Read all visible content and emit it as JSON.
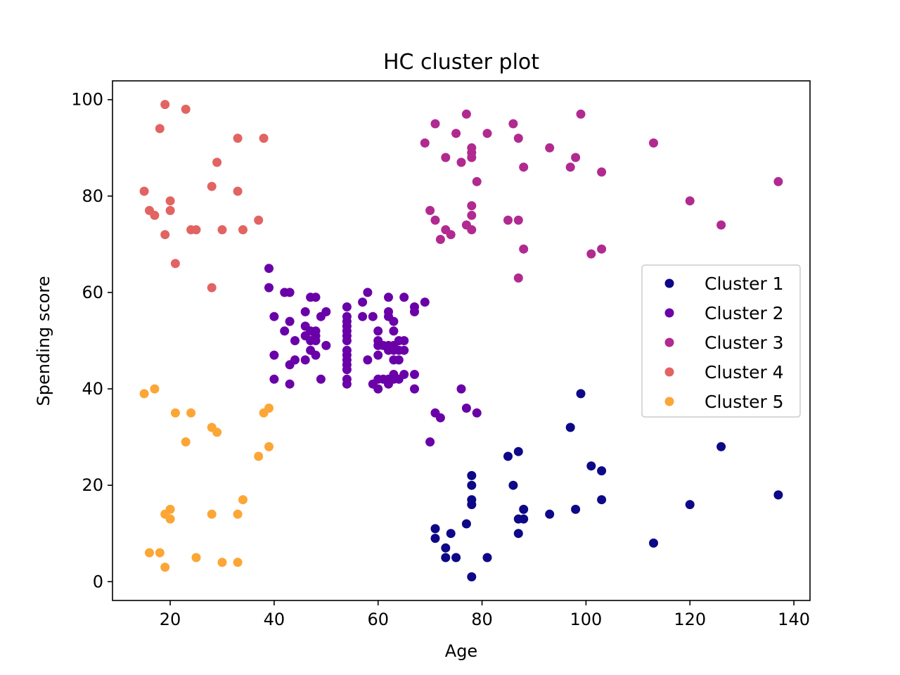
{
  "chart_data": {
    "type": "scatter",
    "title": "HC cluster plot",
    "xlabel": "Age",
    "ylabel": "Spending score",
    "xlim": [
      8.9,
      143.1
    ],
    "ylim": [
      -3.9,
      103.9
    ],
    "xticks": [
      20,
      40,
      60,
      80,
      100,
      120,
      140
    ],
    "yticks": [
      0,
      20,
      40,
      60,
      80,
      100
    ],
    "grid": false,
    "legend_position": "center-right",
    "series": [
      {
        "name": "Cluster 1",
        "color": "#0d0887",
        "points": [
          [
            78,
            1
          ],
          [
            73,
            5
          ],
          [
            75,
            5
          ],
          [
            81,
            5
          ],
          [
            73,
            7
          ],
          [
            113,
            8
          ],
          [
            71,
            9
          ],
          [
            74,
            10
          ],
          [
            87,
            10
          ],
          [
            71,
            11
          ],
          [
            77,
            12
          ],
          [
            87,
            13
          ],
          [
            88,
            13
          ],
          [
            93,
            14
          ],
          [
            78,
            16
          ],
          [
            120,
            16
          ],
          [
            88,
            15
          ],
          [
            98,
            15
          ],
          [
            78,
            17
          ],
          [
            103,
            17
          ],
          [
            137,
            18
          ],
          [
            78,
            20
          ],
          [
            86,
            20
          ],
          [
            78,
            22
          ],
          [
            103,
            23
          ],
          [
            101,
            24
          ],
          [
            85,
            26
          ],
          [
            87,
            27
          ],
          [
            126,
            28
          ],
          [
            97,
            32
          ],
          [
            99,
            39
          ]
        ]
      },
      {
        "name": "Cluster 2",
        "color": "#6a00a8",
        "points": [
          [
            39,
            65
          ],
          [
            39,
            61
          ],
          [
            42,
            60
          ],
          [
            43,
            60
          ],
          [
            47,
            59
          ],
          [
            48,
            59
          ],
          [
            58,
            60
          ],
          [
            62,
            59
          ],
          [
            65,
            59
          ],
          [
            57,
            58
          ],
          [
            69,
            58
          ],
          [
            67,
            57
          ],
          [
            54,
            57
          ],
          [
            40,
            55
          ],
          [
            46,
            56
          ],
          [
            50,
            56
          ],
          [
            49,
            55
          ],
          [
            62,
            56
          ],
          [
            67,
            56
          ],
          [
            57,
            55
          ],
          [
            59,
            55
          ],
          [
            62,
            55
          ],
          [
            43,
            54
          ],
          [
            63,
            54
          ],
          [
            54,
            55
          ],
          [
            54,
            54
          ],
          [
            54,
            53
          ],
          [
            46,
            53
          ],
          [
            48,
            52
          ],
          [
            44,
            50
          ],
          [
            47,
            52
          ],
          [
            42,
            52
          ],
          [
            46,
            51
          ],
          [
            48,
            51
          ],
          [
            54,
            52
          ],
          [
            54,
            51
          ],
          [
            60,
            52
          ],
          [
            63,
            52
          ],
          [
            64,
            50
          ],
          [
            47,
            50
          ],
          [
            48,
            50
          ],
          [
            50,
            49
          ],
          [
            65,
            50
          ],
          [
            54,
            50
          ],
          [
            60,
            50
          ],
          [
            62,
            49
          ],
          [
            63,
            49
          ],
          [
            60,
            49
          ],
          [
            61,
            49
          ],
          [
            47,
            48
          ],
          [
            48,
            47
          ],
          [
            40,
            47
          ],
          [
            54,
            48
          ],
          [
            54,
            47
          ],
          [
            58,
            46
          ],
          [
            60,
            47
          ],
          [
            65,
            48
          ],
          [
            62,
            48
          ],
          [
            63,
            48
          ],
          [
            64,
            48
          ],
          [
            44,
            46
          ],
          [
            46,
            46
          ],
          [
            43,
            45
          ],
          [
            54,
            46
          ],
          [
            54,
            45
          ],
          [
            63,
            46
          ],
          [
            64,
            46
          ],
          [
            54,
            44
          ],
          [
            49,
            42
          ],
          [
            40,
            42
          ],
          [
            43,
            41
          ],
          [
            54,
            42
          ],
          [
            54,
            41
          ],
          [
            59,
            41
          ],
          [
            60,
            42
          ],
          [
            61,
            42
          ],
          [
            62,
            42
          ],
          [
            63,
            43
          ],
          [
            64,
            42
          ],
          [
            65,
            43
          ],
          [
            67,
            43
          ],
          [
            62,
            41
          ],
          [
            63,
            42
          ],
          [
            60,
            40
          ],
          [
            67,
            40
          ],
          [
            76,
            40
          ],
          [
            77,
            36
          ],
          [
            79,
            35
          ],
          [
            71,
            35
          ],
          [
            72,
            34
          ],
          [
            70,
            29
          ]
        ]
      },
      {
        "name": "Cluster 3",
        "color": "#b12a90",
        "points": [
          [
            77,
            97
          ],
          [
            99,
            97
          ],
          [
            71,
            95
          ],
          [
            86,
            95
          ],
          [
            75,
            93
          ],
          [
            81,
            93
          ],
          [
            87,
            92
          ],
          [
            113,
            91
          ],
          [
            69,
            91
          ],
          [
            78,
            90
          ],
          [
            93,
            90
          ],
          [
            78,
            89
          ],
          [
            73,
            88
          ],
          [
            78,
            88
          ],
          [
            98,
            88
          ],
          [
            76,
            87
          ],
          [
            88,
            86
          ],
          [
            97,
            86
          ],
          [
            103,
            85
          ],
          [
            79,
            83
          ],
          [
            137,
            83
          ],
          [
            120,
            79
          ],
          [
            78,
            78
          ],
          [
            70,
            77
          ],
          [
            78,
            76
          ],
          [
            71,
            75
          ],
          [
            85,
            75
          ],
          [
            87,
            75
          ],
          [
            77,
            74
          ],
          [
            126,
            74
          ],
          [
            73,
            73
          ],
          [
            78,
            73
          ],
          [
            74,
            72
          ],
          [
            72,
            71
          ],
          [
            88,
            69
          ],
          [
            103,
            69
          ],
          [
            101,
            68
          ],
          [
            87,
            63
          ]
        ]
      },
      {
        "name": "Cluster 4",
        "color": "#e16462",
        "points": [
          [
            19,
            99
          ],
          [
            23,
            98
          ],
          [
            18,
            94
          ],
          [
            33,
            92
          ],
          [
            38,
            92
          ],
          [
            29,
            87
          ],
          [
            28,
            82
          ],
          [
            15,
            81
          ],
          [
            33,
            81
          ],
          [
            20,
            79
          ],
          [
            16,
            77
          ],
          [
            20,
            77
          ],
          [
            17,
            76
          ],
          [
            37,
            75
          ],
          [
            24,
            73
          ],
          [
            25,
            73
          ],
          [
            30,
            73
          ],
          [
            34,
            73
          ],
          [
            19,
            72
          ],
          [
            21,
            66
          ],
          [
            28,
            61
          ]
        ]
      },
      {
        "name": "Cluster 5",
        "color": "#fca636",
        "points": [
          [
            17,
            40
          ],
          [
            15,
            39
          ],
          [
            39,
            36
          ],
          [
            21,
            35
          ],
          [
            24,
            35
          ],
          [
            38,
            35
          ],
          [
            28,
            32
          ],
          [
            29,
            31
          ],
          [
            23,
            29
          ],
          [
            39,
            28
          ],
          [
            37,
            26
          ],
          [
            34,
            17
          ],
          [
            20,
            15
          ],
          [
            19,
            14
          ],
          [
            28,
            14
          ],
          [
            33,
            14
          ],
          [
            20,
            13
          ],
          [
            16,
            6
          ],
          [
            18,
            6
          ],
          [
            25,
            5
          ],
          [
            30,
            4
          ],
          [
            33,
            4
          ],
          [
            19,
            3
          ]
        ]
      }
    ]
  }
}
